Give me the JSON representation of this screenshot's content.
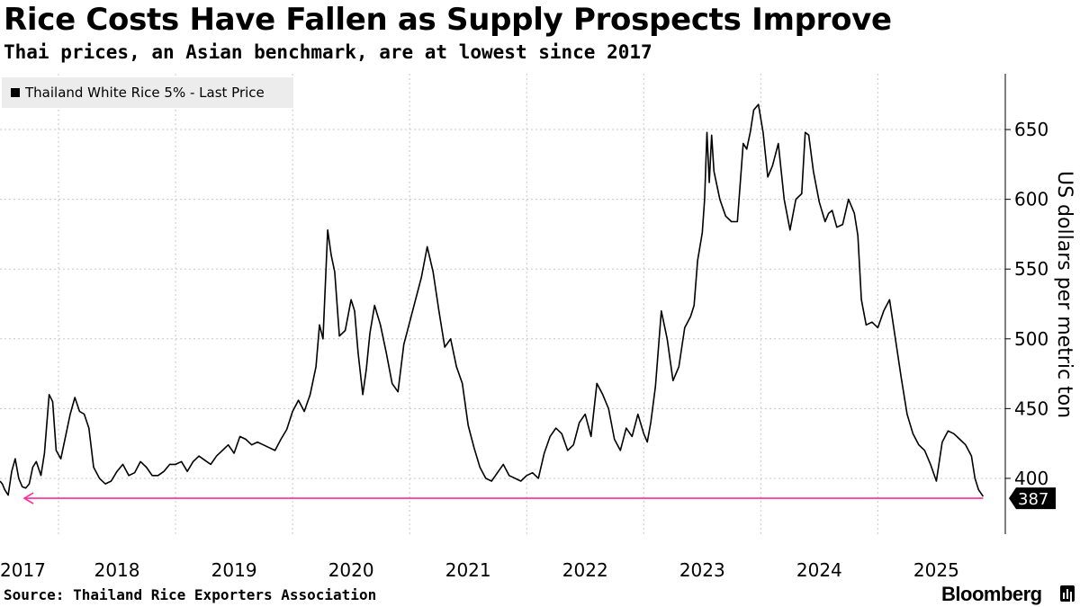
{
  "chart_data": {
    "type": "line",
    "title": "Rice Costs Have Fallen as Supply Prospects Improve",
    "subtitle": "Thai prices, an Asian benchmark, are at lowest since 2017",
    "ylabel": "US dollars per metric ton",
    "xlabel": "",
    "ylim": [
      360,
      690
    ],
    "xlim": [
      2017.0,
      2025.42
    ],
    "yticks": [
      400,
      450,
      500,
      550,
      600,
      650
    ],
    "xticks": [
      {
        "label": "2017",
        "x": 2017.0
      },
      {
        "label": "2018",
        "x": 2018.0
      },
      {
        "label": "2019",
        "x": 2019.0
      },
      {
        "label": "2020",
        "x": 2020.0
      },
      {
        "label": "2021",
        "x": 2021.0
      },
      {
        "label": "2022",
        "x": 2022.0
      },
      {
        "label": "2023",
        "x": 2023.0
      },
      {
        "label": "2024",
        "x": 2024.0
      },
      {
        "label": "2025",
        "x": 2025.0
      }
    ],
    "grid": true,
    "legend": "top-left",
    "series": [
      {
        "name": "Thailand White Rice 5% - Last Price",
        "color": "#000000",
        "x": [
          2017.0,
          2017.02,
          2017.04,
          2017.07,
          2017.1,
          2017.13,
          2017.16,
          2017.19,
          2017.22,
          2017.25,
          2017.28,
          2017.31,
          2017.35,
          2017.38,
          2017.42,
          2017.45,
          2017.48,
          2017.52,
          2017.56,
          2017.6,
          2017.64,
          2017.68,
          2017.72,
          2017.76,
          2017.8,
          2017.85,
          2017.9,
          2017.95,
          2018.0,
          2018.05,
          2018.1,
          2018.15,
          2018.2,
          2018.25,
          2018.3,
          2018.35,
          2018.4,
          2018.45,
          2018.5,
          2018.55,
          2018.6,
          2018.65,
          2018.7,
          2018.75,
          2018.8,
          2018.85,
          2018.9,
          2018.95,
          2019.0,
          2019.05,
          2019.1,
          2019.15,
          2019.2,
          2019.25,
          2019.3,
          2019.35,
          2019.4,
          2019.45,
          2019.5,
          2019.55,
          2019.6,
          2019.65,
          2019.7,
          2019.73,
          2019.76,
          2019.8,
          2019.83,
          2019.86,
          2019.9,
          2019.95,
          2020.0,
          2020.03,
          2020.06,
          2020.1,
          2020.13,
          2020.16,
          2020.2,
          2020.25,
          2020.3,
          2020.35,
          2020.4,
          2020.45,
          2020.5,
          2020.55,
          2020.6,
          2020.65,
          2020.7,
          2020.75,
          2020.8,
          2020.85,
          2020.9,
          2020.95,
          2021.0,
          2021.05,
          2021.1,
          2021.15,
          2021.2,
          2021.25,
          2021.3,
          2021.35,
          2021.4,
          2021.45,
          2021.5,
          2021.55,
          2021.6,
          2021.65,
          2021.7,
          2021.75,
          2021.8,
          2021.85,
          2021.9,
          2021.95,
          2022.0,
          2022.05,
          2022.1,
          2022.15,
          2022.2,
          2022.25,
          2022.3,
          2022.35,
          2022.4,
          2022.45,
          2022.5,
          2022.53,
          2022.56,
          2022.6,
          2022.65,
          2022.7,
          2022.75,
          2022.8,
          2022.85,
          2022.9,
          2022.93,
          2022.96,
          2023.0,
          2023.02,
          2023.04,
          2023.06,
          2023.08,
          2023.1,
          2023.15,
          2023.2,
          2023.25,
          2023.3,
          2023.35,
          2023.38,
          2023.41,
          2023.44,
          2023.48,
          2023.52,
          2023.56,
          2023.6,
          2023.65,
          2023.7,
          2023.75,
          2023.8,
          2023.85,
          2023.88,
          2023.91,
          2023.95,
          2024.0,
          2024.05,
          2024.08,
          2024.11,
          2024.15,
          2024.2,
          2024.25,
          2024.3,
          2024.33,
          2024.36,
          2024.4,
          2024.45,
          2024.5,
          2024.55,
          2024.6,
          2024.65,
          2024.7,
          2024.75,
          2024.8,
          2024.85,
          2024.9,
          2024.95,
          2025.0,
          2025.05,
          2025.1,
          2025.15,
          2025.2,
          2025.25,
          2025.3,
          2025.33,
          2025.36,
          2025.4
        ],
        "values": [
          398,
          396,
          392,
          388,
          405,
          414,
          400,
          394,
          393,
          396,
          408,
          412,
          402,
          418,
          460,
          455,
          420,
          414,
          430,
          446,
          458,
          448,
          446,
          436,
          408,
          400,
          396,
          398,
          405,
          410,
          402,
          404,
          412,
          408,
          402,
          402,
          405,
          410,
          410,
          412,
          405,
          412,
          416,
          413,
          410,
          416,
          420,
          424,
          418,
          430,
          428,
          424,
          426,
          424,
          422,
          420,
          428,
          435,
          448,
          456,
          448,
          460,
          480,
          510,
          500,
          578,
          560,
          548,
          502,
          506,
          528,
          520,
          490,
          460,
          478,
          504,
          524,
          510,
          490,
          468,
          462,
          496,
          512,
          528,
          544,
          566,
          548,
          520,
          494,
          500,
          480,
          468,
          438,
          422,
          408,
          400,
          398,
          404,
          410,
          402,
          400,
          398,
          402,
          404,
          400,
          418,
          430,
          436,
          432,
          420,
          424,
          440,
          446,
          430,
          468,
          460,
          450,
          428,
          420,
          436,
          430,
          446,
          432,
          426,
          440,
          466,
          520,
          500,
          470,
          480,
          508,
          516,
          524,
          556,
          576,
          600,
          648,
          612,
          646,
          620,
          600,
          588,
          584,
          584,
          640,
          636,
          648,
          664,
          668,
          648,
          616,
          624,
          640,
          600,
          578,
          600,
          604,
          648,
          646,
          620,
          598,
          584,
          590,
          592,
          580,
          582,
          600,
          590,
          574,
          528,
          510,
          512,
          508,
          520,
          528,
          500,
          472,
          446,
          432,
          424,
          420,
          410,
          398,
          426,
          434,
          432,
          428,
          424,
          416,
          400,
          392,
          387
        ],
        "last_value": 387
      }
    ],
    "annotation_line": {
      "color": "#ff2a9a",
      "from_x": 2025.4,
      "to_x": 2017.3,
      "y": 387
    }
  },
  "last_label": "387",
  "source": "Source: Thailand Rice Exporters Association",
  "brand": "Bloomberg",
  "colors": {
    "grid": "#c8c8c8",
    "line": "#000000",
    "annotation": "#ff2a9a",
    "legend_bg": "#ececec"
  }
}
